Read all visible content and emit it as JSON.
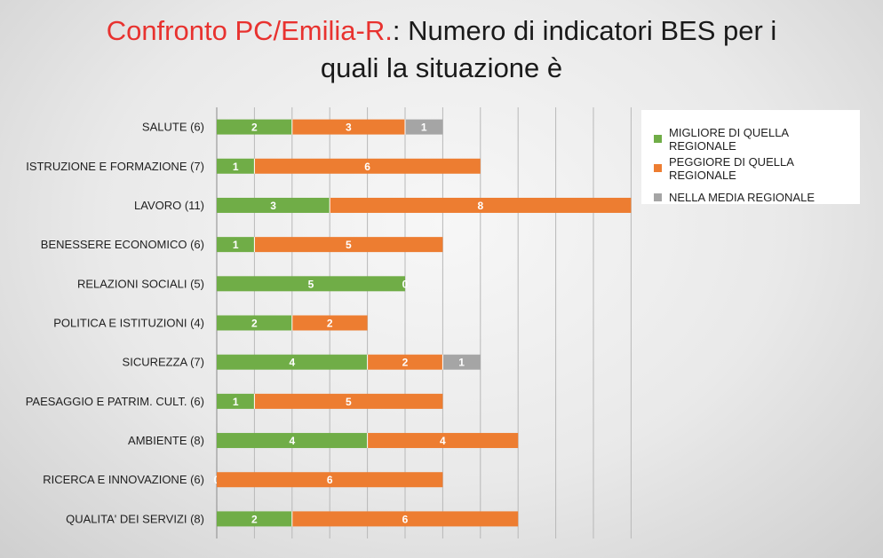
{
  "title": {
    "part1": "Confronto PC/Emilia-R.",
    "part2": ": Numero di indicatori BES per i",
    "line2": "quali la situazione è"
  },
  "colors": {
    "migliore": "#70ad47",
    "peggiore": "#ed7d31",
    "media": "#a5a5a5",
    "title_highlight": "#e8322f"
  },
  "chart_data": {
    "type": "bar",
    "orientation": "horizontal",
    "stacked": true,
    "categories": [
      "SALUTE (6)",
      "ISTRUZIONE E FORMAZIONE (7)",
      "LAVORO (11)",
      "BENESSERE ECONOMICO (6)",
      "RELAZIONI SOCIALI (5)",
      "POLITICA E ISTITUZIONI (4)",
      "SICUREZZA (7)",
      "PAESAGGIO E PATRIM. CULT. (6)",
      "AMBIENTE (8)",
      "RICERCA E INNOVAZIONE (6)",
      "QUALITA' DEI SERVIZI (8)"
    ],
    "series": [
      {
        "name": "MIGLIORE DI QUELLA REGIONALE",
        "values": [
          2,
          1,
          3,
          1,
          5,
          2,
          4,
          1,
          4,
          0,
          2
        ]
      },
      {
        "name": "PEGGIORE DI QUELLA REGIONALE",
        "values": [
          3,
          6,
          8,
          5,
          0,
          2,
          2,
          5,
          4,
          6,
          6
        ]
      },
      {
        "name": "NELLA MEDIA REGIONALE",
        "values": [
          1,
          0,
          0,
          0,
          0,
          0,
          1,
          0,
          0,
          0,
          0
        ]
      }
    ],
    "xlim": [
      0,
      11
    ],
    "grid": true,
    "legend_position": "top-right"
  }
}
